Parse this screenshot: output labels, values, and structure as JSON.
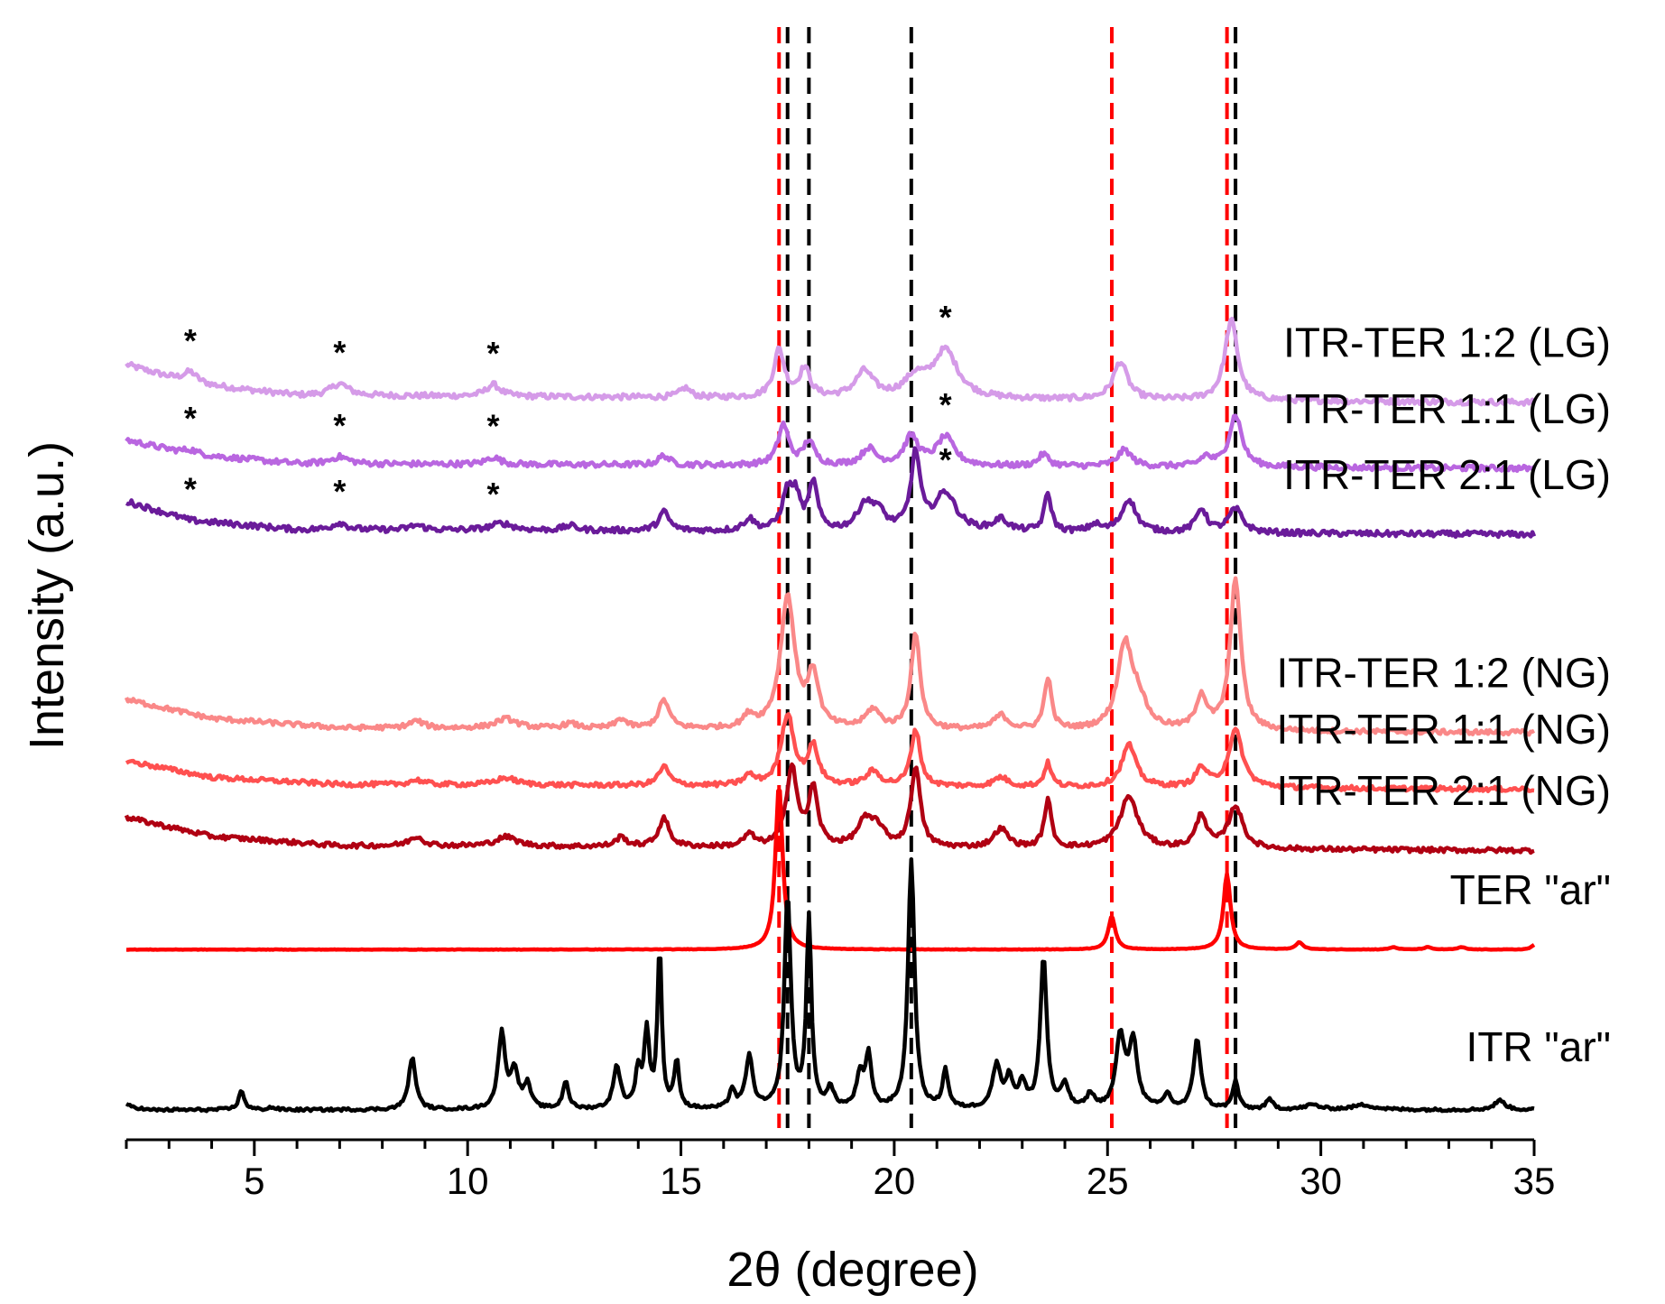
{
  "chart_data": {
    "type": "line",
    "title": "",
    "xlabel": "2θ (degree)",
    "ylabel": "Intensity (a.u.)",
    "xlim": [
      2,
      35
    ],
    "x_ticks": [
      5,
      10,
      15,
      20,
      25,
      30,
      35
    ],
    "x_tick_labels": [
      "5",
      "10",
      "15",
      "20",
      "25",
      "30",
      "35"
    ],
    "y_axis_ticks": false,
    "reference_lines": [
      {
        "x": 17.3,
        "color": "#ff0000",
        "style": "dashed"
      },
      {
        "x": 25.1,
        "color": "#ff0000",
        "style": "dashed"
      },
      {
        "x": 27.8,
        "color": "#ff0000",
        "style": "dashed"
      },
      {
        "x": 17.5,
        "color": "#000000",
        "style": "dashed"
      },
      {
        "x": 18.0,
        "color": "#000000",
        "style": "dashed"
      },
      {
        "x": 20.4,
        "color": "#000000",
        "style": "dashed"
      },
      {
        "x": 28.0,
        "color": "#000000",
        "style": "dashed"
      }
    ],
    "series": [
      {
        "name": "ITR-TER 1:2 (LG)",
        "color": "#d59be8",
        "offset": 15.0,
        "noise": 0.06,
        "baseline": [
          [
            2,
            0.8
          ],
          [
            3.5,
            0.4
          ],
          [
            6,
            0.15
          ],
          [
            15,
            0.1
          ],
          [
            35,
            0.0
          ]
        ],
        "peaks": [
          [
            3.5,
            0.25,
            0.2
          ],
          [
            7.0,
            0.25,
            0.25
          ],
          [
            10.6,
            0.25,
            0.2
          ],
          [
            15.1,
            0.2,
            0.15
          ],
          [
            17.3,
            1.0,
            0.15
          ],
          [
            17.9,
            0.6,
            0.15
          ],
          [
            19.3,
            0.55,
            0.25
          ],
          [
            20.5,
            0.4,
            0.3
          ],
          [
            21.2,
            1.0,
            0.35
          ],
          [
            25.3,
            0.8,
            0.2
          ],
          [
            27.9,
            1.7,
            0.18
          ]
        ],
        "star_positions": [
          3.5,
          7.0,
          10.6,
          21.2
        ]
      },
      {
        "name": "ITR-TER 1:1 (LG)",
        "color": "#b966e0",
        "offset": 13.6,
        "noise": 0.06,
        "baseline": [
          [
            2,
            0.6
          ],
          [
            3.5,
            0.3
          ],
          [
            6,
            0.1
          ],
          [
            35,
            0.0
          ]
        ],
        "peaks": [
          [
            3.5,
            0.1,
            0.2
          ],
          [
            7.0,
            0.15,
            0.25
          ],
          [
            10.6,
            0.15,
            0.2
          ],
          [
            14.6,
            0.2,
            0.15
          ],
          [
            17.4,
            0.85,
            0.15
          ],
          [
            18.0,
            0.5,
            0.15
          ],
          [
            19.4,
            0.35,
            0.2
          ],
          [
            20.4,
            0.6,
            0.2
          ],
          [
            21.2,
            0.6,
            0.25
          ],
          [
            23.5,
            0.25,
            0.15
          ],
          [
            25.4,
            0.35,
            0.2
          ],
          [
            27.3,
            0.2,
            0.15
          ],
          [
            28.0,
            1.1,
            0.18
          ]
        ],
        "star_positions": [
          3.5,
          7.0,
          10.6,
          21.2
        ]
      },
      {
        "name": "ITR-TER 2:1 (LG)",
        "color": "#6a1b9a",
        "offset": 12.2,
        "noise": 0.06,
        "baseline": [
          [
            2,
            0.7
          ],
          [
            3.5,
            0.3
          ],
          [
            6,
            0.1
          ],
          [
            35,
            0.0
          ]
        ],
        "peaks": [
          [
            7.0,
            0.15,
            0.2
          ],
          [
            8.8,
            0.1,
            0.2
          ],
          [
            10.8,
            0.15,
            0.3
          ],
          [
            12.4,
            0.1,
            0.2
          ],
          [
            14.6,
            0.4,
            0.15
          ],
          [
            16.6,
            0.25,
            0.15
          ],
          [
            17.5,
            0.8,
            0.15
          ],
          [
            17.7,
            0.6,
            0.12
          ],
          [
            18.1,
            1.0,
            0.12
          ],
          [
            19.3,
            0.5,
            0.2
          ],
          [
            19.6,
            0.4,
            0.2
          ],
          [
            20.5,
            1.6,
            0.13
          ],
          [
            21.2,
            0.8,
            0.3
          ],
          [
            22.5,
            0.25,
            0.2
          ],
          [
            23.6,
            0.8,
            0.1
          ],
          [
            24.7,
            0.15,
            0.15
          ],
          [
            25.5,
            0.7,
            0.2
          ],
          [
            27.2,
            0.5,
            0.15
          ],
          [
            28.0,
            0.5,
            0.2
          ]
        ],
        "star_positions": [
          3.5,
          7.0,
          10.6,
          21.2
        ]
      },
      {
        "name": "ITR-TER 1:2 (NG)",
        "color": "#fa8888",
        "offset": 8.0,
        "noise": 0.05,
        "baseline": [
          [
            2,
            0.7
          ],
          [
            4,
            0.3
          ],
          [
            7,
            0.1
          ],
          [
            35,
            0.0
          ]
        ],
        "peaks": [
          [
            8.8,
            0.15,
            0.2
          ],
          [
            10.9,
            0.2,
            0.3
          ],
          [
            12.4,
            0.1,
            0.2
          ],
          [
            13.6,
            0.2,
            0.15
          ],
          [
            14.6,
            0.6,
            0.15
          ],
          [
            16.6,
            0.25,
            0.15
          ],
          [
            17.5,
            2.8,
            0.2
          ],
          [
            18.1,
            1.1,
            0.15
          ],
          [
            19.5,
            0.4,
            0.2
          ],
          [
            20.5,
            2.0,
            0.13
          ],
          [
            22.5,
            0.3,
            0.2
          ],
          [
            23.6,
            1.1,
            0.1
          ],
          [
            25.4,
            1.7,
            0.2
          ],
          [
            25.7,
            0.6,
            0.25
          ],
          [
            27.2,
            0.7,
            0.15
          ],
          [
            28.0,
            3.2,
            0.15
          ]
        ],
        "star_positions": []
      },
      {
        "name": "ITR-TER 1:1 (NG)",
        "color": "#ff5050",
        "offset": 6.8,
        "noise": 0.05,
        "baseline": [
          [
            2,
            0.6
          ],
          [
            4,
            0.25
          ],
          [
            7,
            0.1
          ],
          [
            35,
            0.0
          ]
        ],
        "peaks": [
          [
            8.8,
            0.1,
            0.2
          ],
          [
            10.9,
            0.15,
            0.3
          ],
          [
            14.6,
            0.4,
            0.15
          ],
          [
            16.6,
            0.2,
            0.15
          ],
          [
            17.5,
            1.5,
            0.18
          ],
          [
            18.1,
            0.8,
            0.15
          ],
          [
            19.5,
            0.3,
            0.2
          ],
          [
            20.5,
            1.2,
            0.13
          ],
          [
            22.5,
            0.2,
            0.2
          ],
          [
            23.6,
            0.5,
            0.1
          ],
          [
            25.5,
            0.9,
            0.2
          ],
          [
            27.2,
            0.4,
            0.15
          ],
          [
            28.0,
            1.2,
            0.2
          ]
        ],
        "star_positions": []
      },
      {
        "name": "ITR-TER 2:1 (NG)",
        "color": "#b00012",
        "offset": 5.5,
        "noise": 0.05,
        "baseline": [
          [
            2,
            0.7
          ],
          [
            4,
            0.3
          ],
          [
            7,
            0.1
          ],
          [
            35,
            0.0
          ]
        ],
        "peaks": [
          [
            8.8,
            0.2,
            0.2
          ],
          [
            10.9,
            0.2,
            0.3
          ],
          [
            13.6,
            0.2,
            0.15
          ],
          [
            14.6,
            0.6,
            0.15
          ],
          [
            16.6,
            0.25,
            0.15
          ],
          [
            17.6,
            1.7,
            0.15
          ],
          [
            18.1,
            1.2,
            0.13
          ],
          [
            19.3,
            0.5,
            0.2
          ],
          [
            19.6,
            0.4,
            0.2
          ],
          [
            20.5,
            1.7,
            0.13
          ],
          [
            22.5,
            0.4,
            0.2
          ],
          [
            23.6,
            1.0,
            0.1
          ],
          [
            25.5,
            1.1,
            0.25
          ],
          [
            27.2,
            0.7,
            0.15
          ],
          [
            28.0,
            0.9,
            0.2
          ]
        ],
        "star_positions": []
      },
      {
        "name": "TER \"ar\"",
        "color": "#ff0000",
        "offset": 3.4,
        "noise": 0.005,
        "baseline": [
          [
            2,
            0.0
          ],
          [
            35,
            0.0
          ]
        ],
        "peaks": [
          [
            17.3,
            3.5,
            0.1
          ],
          [
            25.1,
            0.7,
            0.1
          ],
          [
            27.8,
            1.6,
            0.1
          ],
          [
            29.5,
            0.15,
            0.1
          ],
          [
            31.7,
            0.05,
            0.1
          ],
          [
            32.5,
            0.05,
            0.1
          ],
          [
            33.3,
            0.05,
            0.1
          ],
          [
            35.0,
            0.1,
            0.08
          ]
        ],
        "star_positions": []
      },
      {
        "name": "ITR \"ar\"",
        "color": "#000000",
        "offset": 0.0,
        "noise": 0.03,
        "baseline": [
          [
            2,
            0.1
          ],
          [
            2.5,
            0.0
          ],
          [
            35,
            0.0
          ]
        ],
        "peaks": [
          [
            4.7,
            0.4,
            0.08
          ],
          [
            5.4,
            0.05,
            0.1
          ],
          [
            8.7,
            1.1,
            0.1
          ],
          [
            10.8,
            1.6,
            0.1
          ],
          [
            11.1,
            0.8,
            0.1
          ],
          [
            11.4,
            0.5,
            0.1
          ],
          [
            12.3,
            0.6,
            0.08
          ],
          [
            13.5,
            0.9,
            0.1
          ],
          [
            14.0,
            0.8,
            0.08
          ],
          [
            14.2,
            1.6,
            0.07
          ],
          [
            14.5,
            3.4,
            0.06
          ],
          [
            14.9,
            1.0,
            0.07
          ],
          [
            16.2,
            0.4,
            0.08
          ],
          [
            16.6,
            1.1,
            0.1
          ],
          [
            17.5,
            4.5,
            0.09
          ],
          [
            18.0,
            4.0,
            0.07
          ],
          [
            18.5,
            0.4,
            0.1
          ],
          [
            19.2,
            0.7,
            0.1
          ],
          [
            19.4,
            1.1,
            0.08
          ],
          [
            20.4,
            5.3,
            0.09
          ],
          [
            21.2,
            0.8,
            0.08
          ],
          [
            22.4,
            0.9,
            0.12
          ],
          [
            22.7,
            0.6,
            0.1
          ],
          [
            23.0,
            0.5,
            0.1
          ],
          [
            23.5,
            3.2,
            0.09
          ],
          [
            24.0,
            0.5,
            0.1
          ],
          [
            24.6,
            0.3,
            0.1
          ],
          [
            25.3,
            1.5,
            0.12
          ],
          [
            25.6,
            1.4,
            0.12
          ],
          [
            26.4,
            0.3,
            0.1
          ],
          [
            27.1,
            1.5,
            0.1
          ],
          [
            28.0,
            0.6,
            0.08
          ],
          [
            28.8,
            0.2,
            0.1
          ],
          [
            29.8,
            0.1,
            0.2
          ],
          [
            31.0,
            0.1,
            0.3
          ],
          [
            34.2,
            0.2,
            0.15
          ]
        ],
        "star_positions": []
      }
    ]
  }
}
